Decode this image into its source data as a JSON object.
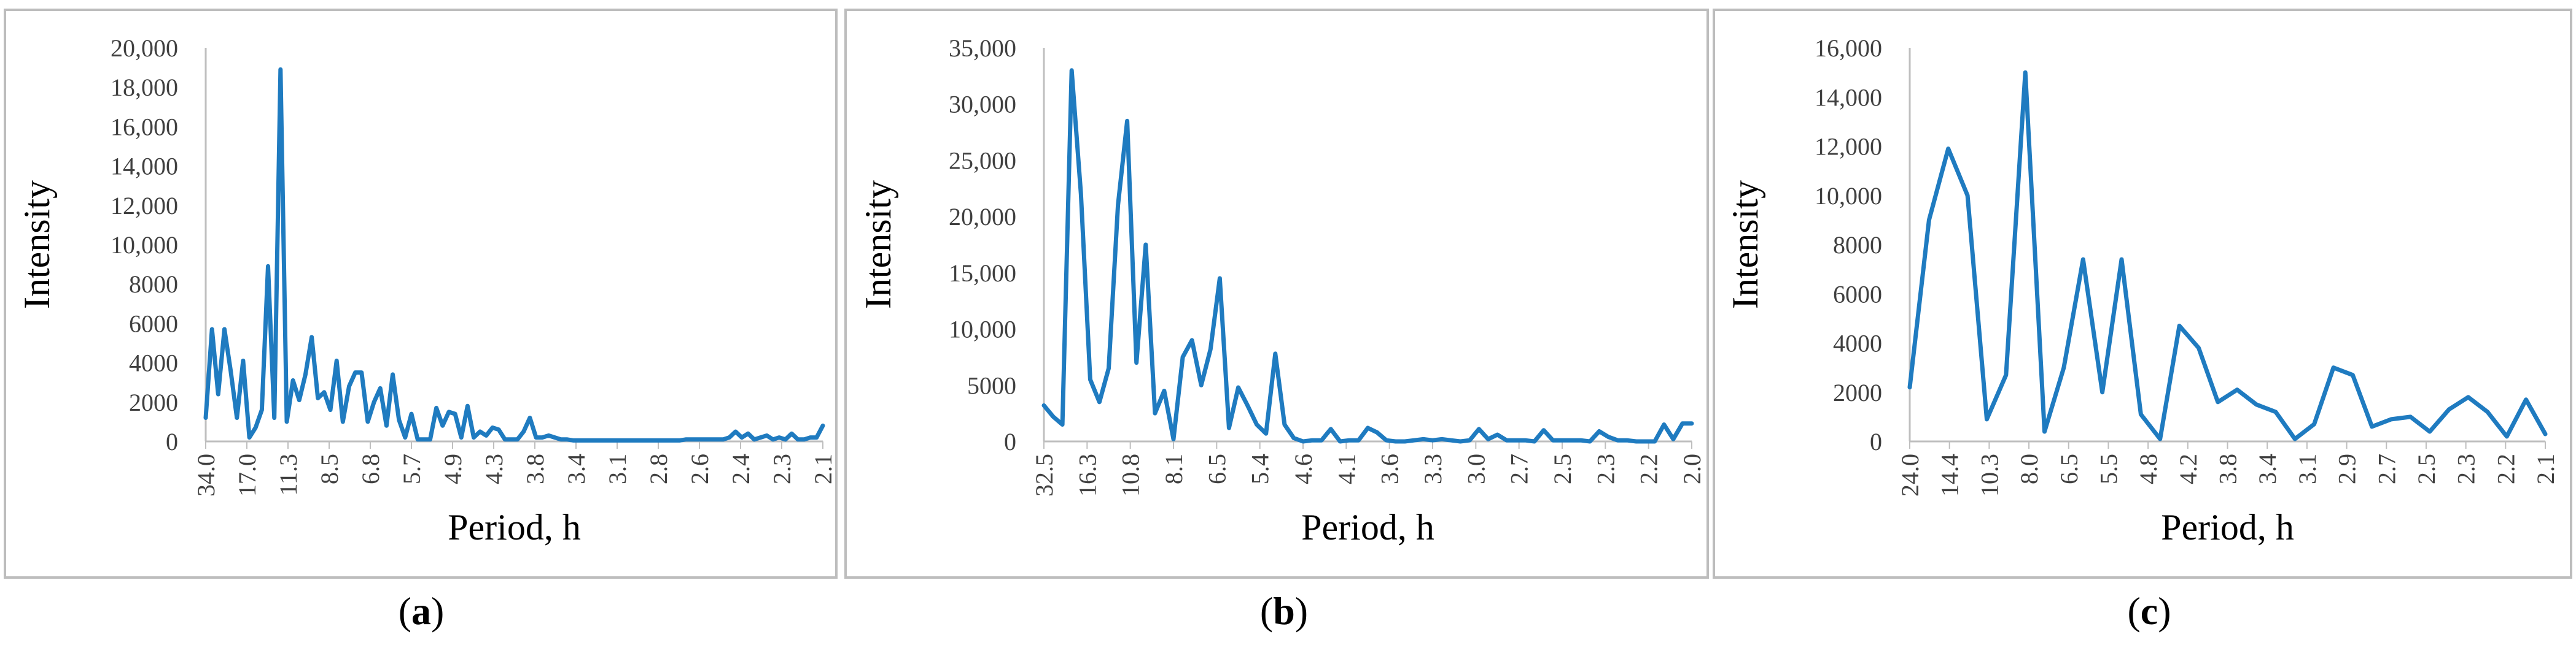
{
  "colors": {
    "line": "#1f7bc0",
    "axis": "#bfbfbf",
    "text": "#404040"
  },
  "chart_data": [
    {
      "type": "line",
      "caption": "a",
      "xlabel": "Period, h",
      "ylabel": "Intensity",
      "ylim": [
        0,
        20000
      ],
      "yticks": [
        "0",
        "2000",
        "4000",
        "6000",
        "8000",
        "10,000",
        "12,000",
        "14,000",
        "16,000",
        "18,000",
        "20,000"
      ],
      "xticks": [
        "34.0",
        "17.0",
        "11.3",
        "8.5",
        "6.8",
        "5.7",
        "4.9",
        "4.3",
        "3.8",
        "3.4",
        "3.1",
        "2.8",
        "2.6",
        "2.4",
        "2.3",
        "2.1"
      ],
      "grid": false,
      "legend": "none",
      "values": [
        1200,
        5700,
        2400,
        5700,
        3600,
        1200,
        4100,
        200,
        700,
        1600,
        8900,
        1200,
        18900,
        1000,
        3100,
        2100,
        3400,
        5300,
        2200,
        2500,
        1600,
        4100,
        1000,
        2800,
        3500,
        3500,
        1000,
        2000,
        2700,
        800,
        3400,
        1100,
        200,
        1400,
        100,
        100,
        100,
        1700,
        800,
        1500,
        1400,
        200,
        1800,
        200,
        500,
        300,
        700,
        600,
        100,
        100,
        100,
        500,
        1200,
        200,
        200,
        300,
        200,
        100,
        100,
        50,
        50,
        50,
        50,
        50,
        50,
        50,
        50,
        50,
        50,
        50,
        50,
        50,
        50,
        50,
        50,
        50,
        50,
        100,
        100,
        100,
        100,
        100,
        100,
        100,
        200,
        500,
        200,
        400,
        100,
        200,
        300,
        100,
        200,
        100,
        400,
        100,
        100,
        200,
        200,
        800
      ]
    },
    {
      "type": "line",
      "caption": "b",
      "xlabel": "Period, h",
      "ylabel": "Intensity",
      "ylim": [
        0,
        35000
      ],
      "yticks": [
        "0",
        "5000",
        "10,000",
        "15,000",
        "20,000",
        "25,000",
        "30,000",
        "35,000"
      ],
      "xticks": [
        "32.5",
        "16.3",
        "10.8",
        "8.1",
        "6.5",
        "5.4",
        "4.6",
        "4.1",
        "3.6",
        "3.3",
        "3.0",
        "2.7",
        "2.5",
        "2.3",
        "2.2",
        "2.0"
      ],
      "grid": false,
      "legend": "none",
      "values": [
        3200,
        2200,
        1500,
        33000,
        22000,
        5500,
        3500,
        6500,
        21000,
        28500,
        7000,
        17500,
        2500,
        4500,
        200,
        7500,
        9000,
        5000,
        8200,
        14500,
        1200,
        4800,
        3200,
        1500,
        700,
        7800,
        1500,
        300,
        0,
        100,
        100,
        1100,
        0,
        100,
        100,
        1200,
        800,
        100,
        0,
        0,
        100,
        200,
        100,
        200,
        100,
        0,
        100,
        1100,
        200,
        600,
        100,
        100,
        100,
        0,
        1000,
        100,
        100,
        100,
        100,
        0,
        900,
        400,
        100,
        100,
        0,
        0,
        0,
        1500,
        200,
        1600,
        1600
      ]
    },
    {
      "type": "line",
      "caption": "c",
      "xlabel": "Period, h",
      "ylabel": "Intensity",
      "ylim": [
        0,
        16000
      ],
      "yticks": [
        "0",
        "2000",
        "4000",
        "6000",
        "8000",
        "10,000",
        "12,000",
        "14,000",
        "16,000"
      ],
      "xticks": [
        "24.0",
        "14.4",
        "10.3",
        "8.0",
        "6.5",
        "5.5",
        "4.8",
        "4.2",
        "3.8",
        "3.4",
        "3.1",
        "2.9",
        "2.7",
        "2.5",
        "2.3",
        "2.2",
        "2.1"
      ],
      "grid": false,
      "legend": "none",
      "values": [
        2200,
        9000,
        11900,
        10000,
        900,
        2700,
        15000,
        400,
        3000,
        7400,
        2000,
        7400,
        1100,
        100,
        4700,
        3800,
        1600,
        2100,
        1500,
        1200,
        100,
        700,
        3000,
        2700,
        600,
        900,
        1000,
        400,
        1300,
        1800,
        1200,
        200,
        1700,
        300
      ]
    }
  ]
}
